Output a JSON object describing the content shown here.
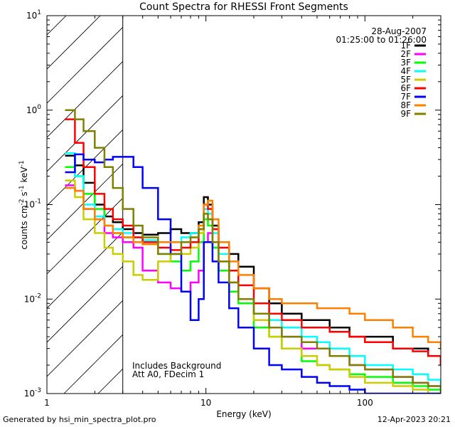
{
  "chart_data": {
    "type": "line",
    "title": "Count Spectra for RHESSI Front Segments",
    "xlabel": "Energy (keV)",
    "ylabel_parts": [
      "counts cm",
      "-2",
      " s",
      "-1",
      " keV",
      "-1"
    ],
    "xscale": "log",
    "yscale": "log",
    "xlim": [
      1,
      300
    ],
    "ylim": [
      0.001,
      10
    ],
    "x_tick_labels": [
      {
        "value": 1,
        "label": "1"
      },
      {
        "value": 10,
        "label": "10"
      },
      {
        "value": 100,
        "label": "100"
      }
    ],
    "y_tick_labels": [
      {
        "value": 10,
        "base": "10",
        "exp": "1"
      },
      {
        "value": 1,
        "base": "10",
        "exp": "0"
      },
      {
        "value": 0.1,
        "base": "10",
        "exp": "-1"
      },
      {
        "value": 0.01,
        "base": "10",
        "exp": "-2"
      },
      {
        "value": 0.001,
        "base": "10",
        "exp": "-3"
      }
    ],
    "date": "28-Aug-2007",
    "time_range": "01:25:00 to 01:26:00",
    "annotations": [
      "Includes Background",
      "Att A0, FDecim 1"
    ],
    "hatched_region_kev": [
      1,
      3
    ],
    "legend_position": "top-right",
    "series": [
      {
        "name": "1F",
        "color": "#000000",
        "x": [
          1.3,
          1.5,
          1.7,
          2.0,
          2.3,
          2.6,
          3.0,
          3.5,
          4.0,
          5.0,
          6.0,
          7.0,
          8.0,
          9.0,
          9.7,
          10.3,
          11.0,
          12.0,
          14.0,
          16.0,
          20.0,
          25.0,
          30.0,
          40.0,
          50.0,
          60.0,
          80.0,
          100.0,
          150.0,
          200.0,
          250.0,
          300.0
        ],
        "y": [
          0.33,
          0.26,
          0.17,
          0.1,
          0.075,
          0.065,
          0.055,
          0.05,
          0.048,
          0.05,
          0.055,
          0.05,
          0.05,
          0.065,
          0.12,
          0.1,
          0.06,
          0.04,
          0.03,
          0.022,
          0.013,
          0.009,
          0.007,
          0.006,
          0.006,
          0.005,
          0.004,
          0.004,
          0.003,
          0.003,
          0.0025,
          0.002
        ]
      },
      {
        "name": "2F",
        "color": "#ff00ff",
        "x": [
          1.3,
          1.5,
          1.7,
          2.0,
          2.3,
          2.6,
          3.0,
          3.5,
          4.0,
          5.0,
          6.0,
          7.0,
          8.0,
          9.0,
          9.7,
          10.3,
          11.0,
          12.0,
          14.0,
          16.0,
          20.0,
          25.0,
          30.0,
          40.0,
          50.0,
          60.0,
          80.0,
          100.0,
          150.0,
          200.0,
          250.0,
          300.0
        ],
        "y": [
          0.16,
          0.14,
          0.09,
          0.07,
          0.05,
          0.045,
          0.04,
          0.035,
          0.02,
          0.015,
          0.013,
          0.012,
          0.015,
          0.02,
          0.04,
          0.05,
          0.035,
          0.02,
          0.015,
          0.01,
          0.007,
          0.005,
          0.004,
          0.003,
          0.003,
          0.0025,
          0.002,
          0.0018,
          0.0015,
          0.0013,
          0.0012,
          0.001
        ]
      },
      {
        "name": "3F",
        "color": "#00ff00",
        "x": [
          1.3,
          1.5,
          1.7,
          2.0,
          2.3,
          2.6,
          3.0,
          3.5,
          4.0,
          5.0,
          6.0,
          7.0,
          8.0,
          9.0,
          9.7,
          10.3,
          11.0,
          12.0,
          14.0,
          16.0,
          20.0,
          25.0,
          30.0,
          40.0,
          50.0,
          60.0,
          80.0,
          100.0,
          150.0,
          200.0,
          250.0,
          300.0
        ],
        "y": [
          0.25,
          0.2,
          0.13,
          0.09,
          0.06,
          0.05,
          0.045,
          0.04,
          0.038,
          0.03,
          0.025,
          0.02,
          0.025,
          0.04,
          0.07,
          0.06,
          0.035,
          0.02,
          0.012,
          0.009,
          0.005,
          0.004,
          0.003,
          0.0022,
          0.002,
          0.0018,
          0.0016,
          0.0015,
          0.0013,
          0.0012,
          0.0011,
          0.001
        ]
      },
      {
        "name": "4F",
        "color": "#00ffff",
        "x": [
          1.3,
          1.5,
          1.7,
          2.0,
          2.3,
          2.6,
          3.0,
          3.5,
          4.0,
          5.0,
          6.0,
          7.0,
          8.0,
          9.0,
          9.7,
          10.3,
          11.0,
          12.0,
          14.0,
          16.0,
          20.0,
          25.0,
          30.0,
          40.0,
          50.0,
          60.0,
          80.0,
          100.0,
          150.0,
          200.0,
          250.0,
          300.0
        ],
        "y": [
          0.35,
          0.2,
          0.1,
          0.075,
          0.06,
          0.055,
          0.05,
          0.045,
          0.042,
          0.04,
          0.04,
          0.045,
          0.05,
          0.06,
          0.09,
          0.08,
          0.05,
          0.03,
          0.02,
          0.014,
          0.009,
          0.006,
          0.005,
          0.004,
          0.0035,
          0.003,
          0.0025,
          0.002,
          0.0018,
          0.0016,
          0.0014,
          0.0012
        ]
      },
      {
        "name": "5F",
        "color": "#cccc00",
        "x": [
          1.3,
          1.5,
          1.7,
          2.0,
          2.3,
          2.6,
          3.0,
          3.5,
          4.0,
          5.0,
          6.0,
          7.0,
          8.0,
          9.0,
          9.7,
          10.3,
          11.0,
          12.0,
          14.0,
          16.0,
          20.0,
          25.0,
          30.0,
          40.0,
          50.0,
          60.0,
          80.0,
          100.0,
          150.0,
          200.0,
          250.0,
          300.0
        ],
        "y": [
          0.18,
          0.12,
          0.07,
          0.05,
          0.035,
          0.03,
          0.025,
          0.018,
          0.016,
          0.025,
          0.03,
          0.03,
          0.035,
          0.05,
          0.08,
          0.07,
          0.04,
          0.025,
          0.015,
          0.01,
          0.006,
          0.004,
          0.003,
          0.0025,
          0.002,
          0.0018,
          0.0015,
          0.0013,
          0.0012,
          0.0011,
          0.001,
          0.001
        ]
      },
      {
        "name": "6F",
        "color": "#ff0000",
        "x": [
          1.3,
          1.5,
          1.7,
          2.0,
          2.3,
          2.6,
          3.0,
          3.5,
          4.0,
          5.0,
          6.0,
          7.0,
          8.0,
          9.0,
          9.7,
          10.3,
          11.0,
          12.0,
          14.0,
          16.0,
          20.0,
          25.0,
          30.0,
          40.0,
          50.0,
          60.0,
          80.0,
          100.0,
          150.0,
          200.0,
          250.0,
          300.0
        ],
        "y": [
          0.8,
          0.45,
          0.25,
          0.13,
          0.09,
          0.07,
          0.06,
          0.045,
          0.04,
          0.035,
          0.033,
          0.035,
          0.04,
          0.055,
          0.1,
          0.09,
          0.055,
          0.035,
          0.02,
          0.014,
          0.009,
          0.007,
          0.006,
          0.005,
          0.005,
          0.0045,
          0.004,
          0.0035,
          0.003,
          0.0028,
          0.0025,
          0.002
        ]
      },
      {
        "name": "7F",
        "color": "#0000ff",
        "x": [
          1.3,
          1.5,
          1.7,
          2.0,
          2.3,
          2.6,
          3.0,
          3.5,
          4.0,
          5.0,
          6.0,
          7.0,
          8.0,
          9.0,
          9.7,
          10.3,
          11.0,
          12.0,
          14.0,
          16.0,
          20.0,
          25.0,
          30.0,
          40.0,
          50.0,
          60.0,
          80.0,
          100.0,
          150.0,
          200.0,
          250.0,
          300.0
        ],
        "y": [
          0.22,
          0.34,
          0.3,
          0.28,
          0.3,
          0.32,
          0.32,
          0.25,
          0.15,
          0.07,
          0.03,
          0.012,
          0.006,
          0.01,
          0.04,
          0.04,
          0.025,
          0.015,
          0.008,
          0.005,
          0.003,
          0.002,
          0.0018,
          0.0015,
          0.0013,
          0.0012,
          0.0011,
          0.001,
          0.001,
          0.001,
          0.001,
          0.001
        ]
      },
      {
        "name": "8F",
        "color": "#ff8000",
        "x": [
          1.3,
          1.5,
          1.7,
          2.0,
          2.3,
          2.6,
          3.0,
          3.5,
          4.0,
          5.0,
          6.0,
          7.0,
          8.0,
          9.0,
          9.7,
          10.3,
          11.0,
          12.0,
          14.0,
          16.0,
          20.0,
          25.0,
          30.0,
          40.0,
          50.0,
          60.0,
          80.0,
          100.0,
          150.0,
          200.0,
          250.0,
          300.0
        ],
        "y": [
          0.15,
          0.14,
          0.09,
          0.07,
          0.06,
          0.05,
          0.045,
          0.04,
          0.038,
          0.04,
          0.04,
          0.04,
          0.045,
          0.06,
          0.1,
          0.11,
          0.07,
          0.04,
          0.025,
          0.018,
          0.013,
          0.01,
          0.009,
          0.009,
          0.008,
          0.008,
          0.007,
          0.006,
          0.005,
          0.004,
          0.0035,
          0.003
        ]
      },
      {
        "name": "9F",
        "color": "#808000",
        "x": [
          1.3,
          1.5,
          1.7,
          2.0,
          2.3,
          2.6,
          3.0,
          3.5,
          4.0,
          5.0,
          6.0,
          7.0,
          8.0,
          9.0,
          9.7,
          10.3,
          11.0,
          12.0,
          14.0,
          16.0,
          20.0,
          25.0,
          30.0,
          40.0,
          50.0,
          60.0,
          80.0,
          100.0,
          150.0,
          200.0,
          250.0,
          300.0
        ],
        "y": [
          1.0,
          0.8,
          0.6,
          0.4,
          0.25,
          0.15,
          0.09,
          0.06,
          0.045,
          0.03,
          0.03,
          0.04,
          0.045,
          0.055,
          0.08,
          0.07,
          0.04,
          0.025,
          0.015,
          0.01,
          0.007,
          0.005,
          0.004,
          0.0035,
          0.003,
          0.0025,
          0.002,
          0.0018,
          0.0015,
          0.0013,
          0.0012,
          0.001
        ]
      }
    ]
  },
  "footer": {
    "generated_by": "Generated by hsi_min_spectra_plot.pro",
    "timestamp": "12-Apr-2023 20:21"
  }
}
